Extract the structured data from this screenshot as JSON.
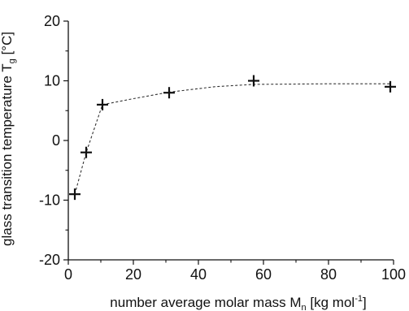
{
  "chart_data": {
    "type": "scatter",
    "xlabel": {
      "main": "number average molar mass M",
      "sub": "n",
      "unit_open": " [kg mol",
      "sup": "-1",
      "unit_close": "]"
    },
    "ylabel": {
      "main": "glass transition temperature T",
      "sub": "g",
      "unit": " [°C]"
    },
    "xlim": [
      0,
      100
    ],
    "ylim": [
      -20,
      20
    ],
    "xticks": [
      0,
      20,
      40,
      60,
      80,
      100
    ],
    "yticks": [
      -20,
      -10,
      0,
      10,
      20
    ],
    "xtick_labels": [
      "0",
      "20",
      "40",
      "60",
      "80",
      "100"
    ],
    "ytick_labels": [
      "-20",
      "-10",
      "0",
      "10",
      "20"
    ],
    "grid": false,
    "marker": "plus",
    "line_style": "dashed",
    "colors": {
      "axis": "#111111",
      "points": "#111111",
      "line": "#333333"
    },
    "series": [
      {
        "points": [
          {
            "x": 2,
            "y": -9
          },
          {
            "x": 5.5,
            "y": -2
          },
          {
            "x": 10.5,
            "y": 6
          },
          {
            "x": 31,
            "y": 8
          },
          {
            "x": 57,
            "y": 10
          },
          {
            "x": 99,
            "y": 9
          }
        ]
      }
    ],
    "fit_curve": [
      {
        "x": 2,
        "y": -9
      },
      {
        "x": 5.5,
        "y": -2
      },
      {
        "x": 10.5,
        "y": 6
      },
      {
        "x": 20,
        "y": 7
      },
      {
        "x": 31,
        "y": 8.1
      },
      {
        "x": 45,
        "y": 9
      },
      {
        "x": 57,
        "y": 9.4
      },
      {
        "x": 80,
        "y": 9.5
      },
      {
        "x": 99,
        "y": 9.5
      }
    ]
  }
}
